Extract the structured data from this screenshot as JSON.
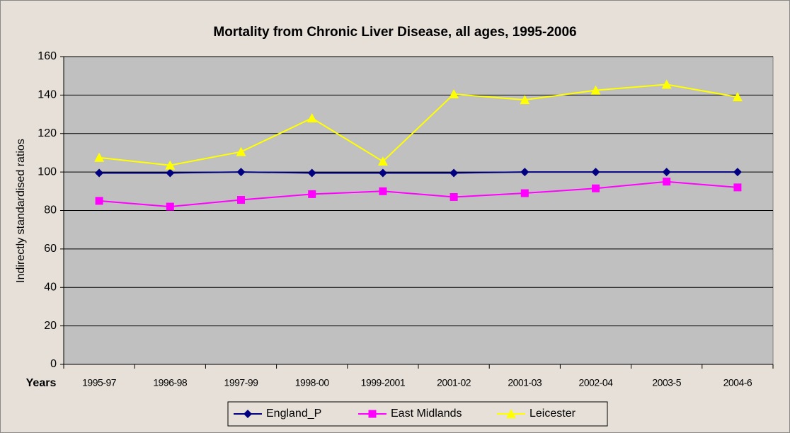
{
  "chart_data": {
    "type": "line",
    "title": "Mortality from Chronic Liver Disease, all ages, 1995-2006",
    "x_label": "Years",
    "y_label": "Indirectly standardised ratios",
    "categories": [
      "1995-97",
      "1996-98",
      "1997-99",
      "1998-00",
      "1999-2001",
      "2001-02",
      "2001-03",
      "2002-04",
      "2003-5",
      "2004-6"
    ],
    "series": [
      {
        "name": "England_P",
        "color": "#000080",
        "marker": "diamond",
        "values": [
          99.5,
          99.5,
          100,
          99.5,
          99.5,
          99.5,
          100,
          100,
          100,
          100
        ]
      },
      {
        "name": "East Midlands",
        "color": "#ff00ff",
        "marker": "square",
        "values": [
          85,
          82,
          85.5,
          88.5,
          90,
          87,
          89,
          91.5,
          95,
          92
        ]
      },
      {
        "name": "Leicester",
        "color": "#ffff00",
        "marker": "triangle",
        "values": [
          107.5,
          103.5,
          110.5,
          128,
          105.5,
          140.5,
          137.5,
          142.5,
          145.5,
          139
        ]
      }
    ],
    "ylim": [
      0,
      160
    ],
    "yticks": [
      0,
      20,
      40,
      60,
      80,
      100,
      120,
      140,
      160
    ],
    "grid": true,
    "legend": "bottom"
  }
}
